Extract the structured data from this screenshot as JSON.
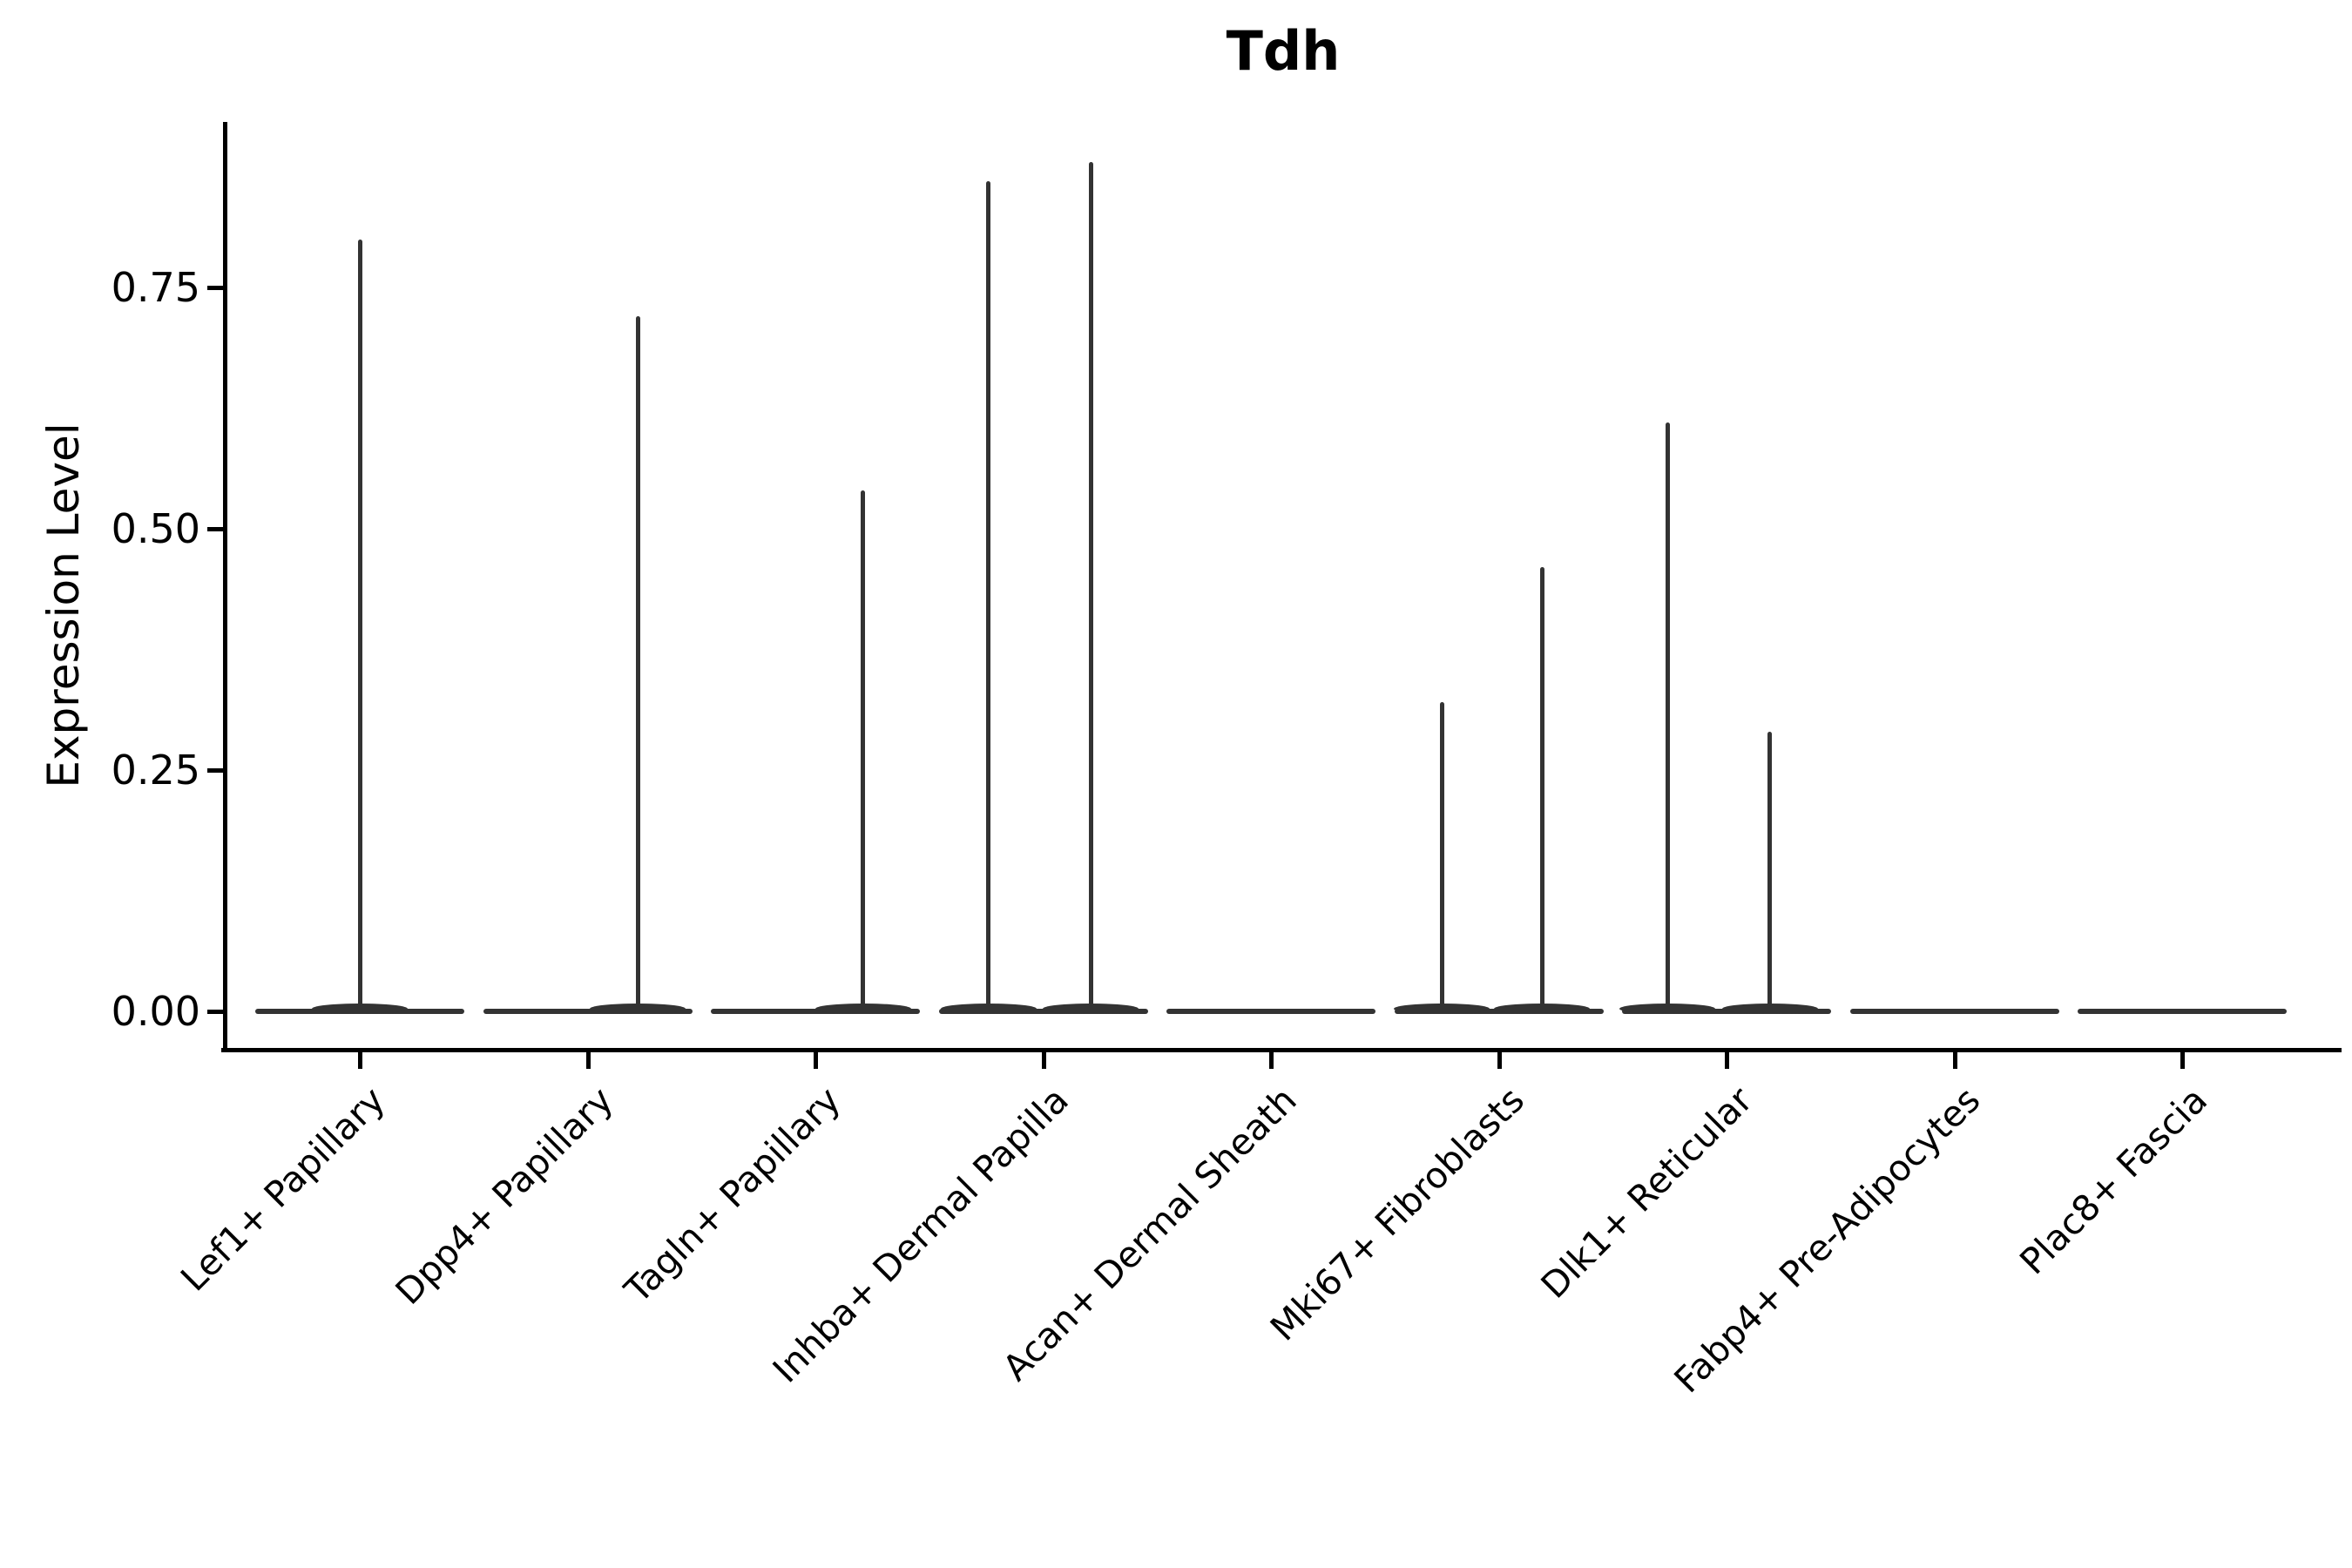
{
  "title": "Tdh",
  "chart_data": {
    "type": "violin",
    "title": "Tdh",
    "xlabel": "",
    "ylabel": "Expression Level",
    "grid": false,
    "legend": "none",
    "background_color": "#ffffff",
    "violin_color": "#333333",
    "axis_color": "#000000",
    "ylim": [
      -0.04,
      0.92
    ],
    "ytick_labels": [
      "0.00",
      "0.25",
      "0.50",
      "0.75"
    ],
    "ytick_values": [
      0.0,
      0.25,
      0.5,
      0.75
    ],
    "categories": [
      "Lef1+ Papillary",
      "Dpp4+ Papillary",
      "Tagln+ Papillary",
      "Inhba+ Dermal Papilla",
      "Acan+ Dermal Sheath",
      "Mki67+ Fibroblasts",
      "Dlk1+ Reticular",
      "Fabp4+ Pre-Adipocytes",
      "Plac8+ Fascia"
    ],
    "series": [
      {
        "category": "Lef1+ Papillary",
        "base_at_zero": true,
        "spikes": [
          {
            "dx_frac": 0.0,
            "max": 0.8
          }
        ]
      },
      {
        "category": "Dpp4+ Papillary",
        "base_at_zero": true,
        "spikes": [
          {
            "dx_frac": 0.22,
            "max": 0.72
          }
        ]
      },
      {
        "category": "Tagln+ Papillary",
        "base_at_zero": true,
        "spikes": [
          {
            "dx_frac": 0.21,
            "max": 0.54
          }
        ]
      },
      {
        "category": "Inhba+ Dermal Papilla",
        "base_at_zero": true,
        "spikes": [
          {
            "dx_frac": -0.24,
            "max": 0.86
          },
          {
            "dx_frac": 0.21,
            "max": 0.88
          }
        ]
      },
      {
        "category": "Acan+ Dermal Sheath",
        "base_at_zero": true,
        "spikes": []
      },
      {
        "category": "Mki67+ Fibroblasts",
        "base_at_zero": true,
        "spikes": [
          {
            "dx_frac": -0.25,
            "max": 0.32
          },
          {
            "dx_frac": 0.19,
            "max": 0.46
          }
        ]
      },
      {
        "category": "Dlk1+ Reticular",
        "base_at_zero": true,
        "spikes": [
          {
            "dx_frac": -0.26,
            "max": 0.61
          },
          {
            "dx_frac": 0.19,
            "max": 0.29
          }
        ]
      },
      {
        "category": "Fabp4+ Pre-Adipocytes",
        "base_at_zero": true,
        "spikes": []
      },
      {
        "category": "Plac8+ Fascia",
        "base_at_zero": true,
        "spikes": []
      }
    ]
  }
}
